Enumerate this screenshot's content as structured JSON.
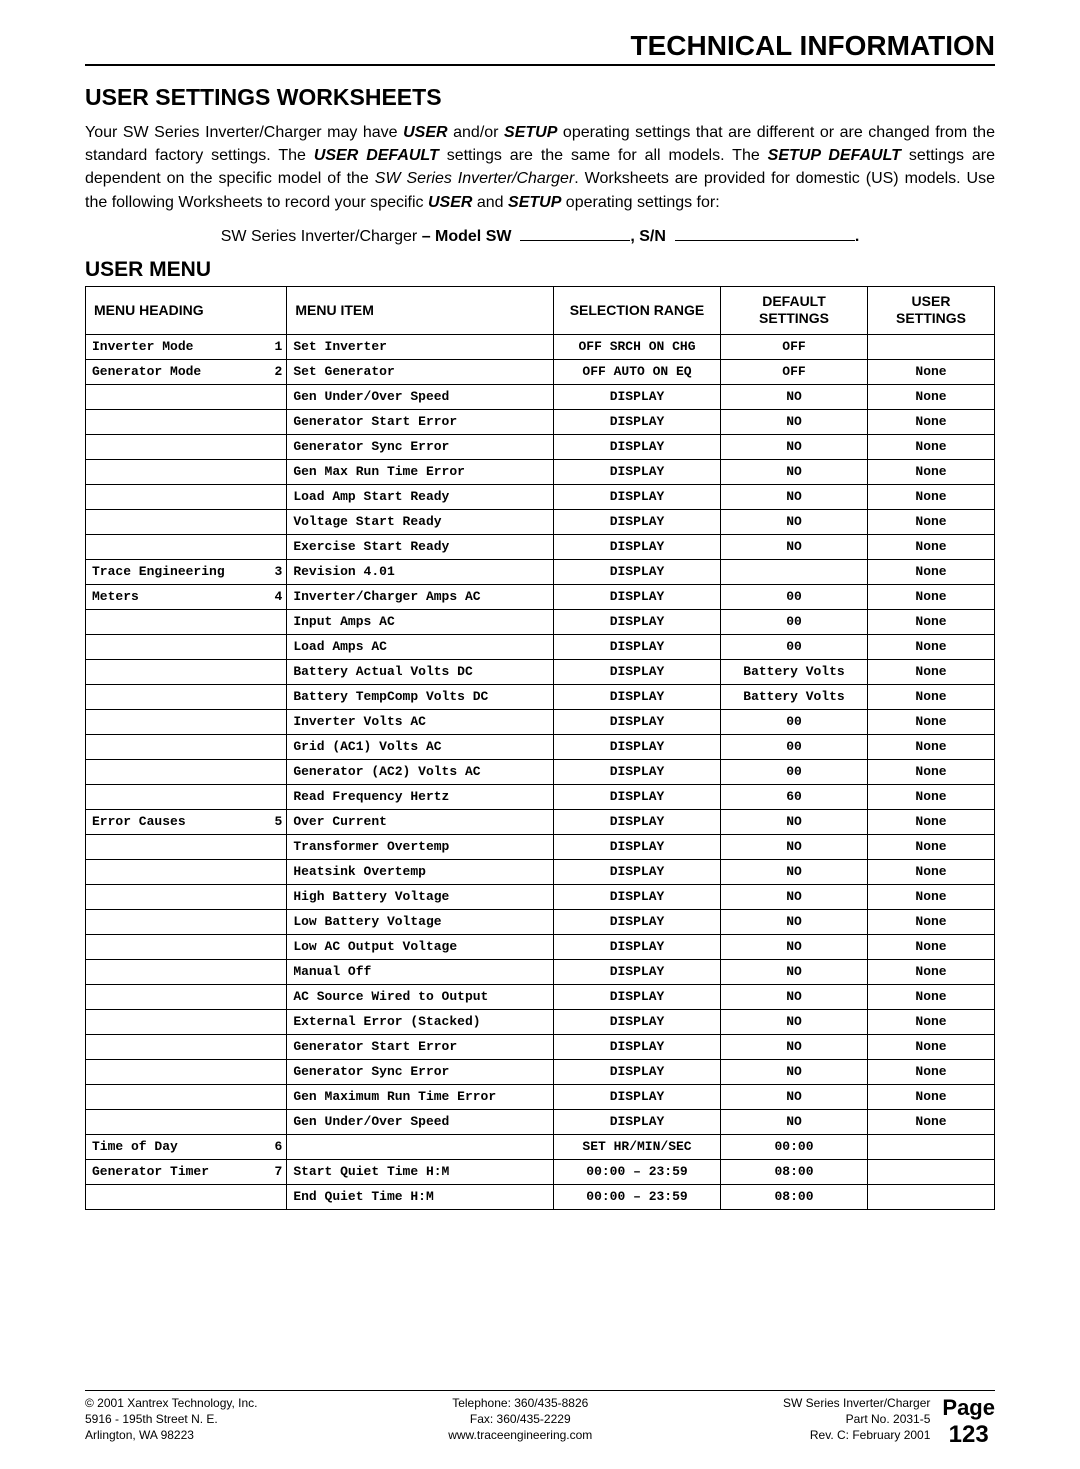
{
  "header": {
    "title": "TECHNICAL INFORMATION"
  },
  "section": {
    "title": "USER SETTINGS WORKSHEETS"
  },
  "intro": {
    "p1a": "Your SW Series Inverter/Charger may have ",
    "p1b_bi": "USER",
    "p1c": " and/or ",
    "p1d_bi": "SETUP",
    "p1e": " operating settings that are different or are changed from the standard factory settings. The ",
    "p1f_bi": "USER DEFAULT",
    "p1g": " settings are the same for all models. The ",
    "p1h_bi": "SETUP DEFAULT",
    "p1i": " settings are dependent on the specific model of the ",
    "p1j_i": "SW Series Inverter/Charger",
    "p1k": ". Worksheets are provided for domestic (US) models. Use the following Worksheets to record your specific ",
    "p1l_bi": "USER",
    "p1m": " and ",
    "p1n_bi": "SETUP",
    "p1o": " operating settings for:"
  },
  "model_line": {
    "prefix": "SW Series Inverter/Charger ",
    "model_bold": "– Model SW",
    "sn_bold": ", S/N",
    "period": "."
  },
  "subsection": {
    "title": "USER MENU"
  },
  "table": {
    "columns": {
      "heading": "MENU HEADING",
      "item": "MENU ITEM",
      "range": "SELECTION RANGE",
      "default": "DEFAULT SETTINGS",
      "user": "USER SETTINGS"
    },
    "rows": [
      {
        "heading": "Inverter Mode",
        "num": "1",
        "item": "Set Inverter",
        "range": "OFF SRCH ON CHG",
        "default": "OFF",
        "user": ""
      },
      {
        "heading": "Generator Mode",
        "num": "2",
        "item": "Set Generator",
        "range": "OFF AUTO ON EQ",
        "default": "OFF",
        "user": "None"
      },
      {
        "heading": "",
        "num": "",
        "item": "Gen Under/Over Speed",
        "range": "DISPLAY",
        "default": "NO",
        "user": "None"
      },
      {
        "heading": "",
        "num": "",
        "item": "Generator Start Error",
        "range": "DISPLAY",
        "default": "NO",
        "user": "None"
      },
      {
        "heading": "",
        "num": "",
        "item": "Generator Sync Error",
        "range": "DISPLAY",
        "default": "NO",
        "user": "None"
      },
      {
        "heading": "",
        "num": "",
        "item": "Gen Max Run Time Error",
        "range": "DISPLAY",
        "default": "NO",
        "user": "None"
      },
      {
        "heading": "",
        "num": "",
        "item": "Load Amp Start Ready",
        "range": "DISPLAY",
        "default": "NO",
        "user": "None"
      },
      {
        "heading": "",
        "num": "",
        "item": "Voltage Start Ready",
        "range": "DISPLAY",
        "default": "NO",
        "user": "None"
      },
      {
        "heading": "",
        "num": "",
        "item": "Exercise Start Ready",
        "range": "DISPLAY",
        "default": "NO",
        "user": "None"
      },
      {
        "heading": "Trace Engineering",
        "num": "3",
        "item": "Revision 4.01",
        "range": "DISPLAY",
        "default": "",
        "user": "None"
      },
      {
        "heading": "Meters",
        "num": "4",
        "item": "Inverter/Charger Amps AC",
        "range": "DISPLAY",
        "default": "00",
        "user": "None"
      },
      {
        "heading": "",
        "num": "",
        "item": "Input Amps AC",
        "range": "DISPLAY",
        "default": "00",
        "user": "None"
      },
      {
        "heading": "",
        "num": "",
        "item": "Load Amps AC",
        "range": "DISPLAY",
        "default": "00",
        "user": "None"
      },
      {
        "heading": "",
        "num": "",
        "item": "Battery Actual Volts DC",
        "range": "DISPLAY",
        "default": "Battery Volts",
        "user": "None"
      },
      {
        "heading": "",
        "num": "",
        "item": "Battery TempComp Volts DC",
        "range": "DISPLAY",
        "default": "Battery Volts",
        "user": "None"
      },
      {
        "heading": "",
        "num": "",
        "item": "Inverter Volts AC",
        "range": "DISPLAY",
        "default": "00",
        "user": "None"
      },
      {
        "heading": "",
        "num": "",
        "item": "Grid (AC1) Volts AC",
        "range": "DISPLAY",
        "default": "00",
        "user": "None"
      },
      {
        "heading": "",
        "num": "",
        "item": "Generator (AC2) Volts AC",
        "range": "DISPLAY",
        "default": "00",
        "user": "None"
      },
      {
        "heading": "",
        "num": "",
        "item": "Read Frequency Hertz",
        "range": "DISPLAY",
        "default": "60",
        "user": "None"
      },
      {
        "heading": "Error Causes",
        "num": "5",
        "item": "Over Current",
        "range": "DISPLAY",
        "default": "NO",
        "user": "None"
      },
      {
        "heading": "",
        "num": "",
        "item": "Transformer Overtemp",
        "range": "DISPLAY",
        "default": "NO",
        "user": "None"
      },
      {
        "heading": "",
        "num": "",
        "item": "Heatsink Overtemp",
        "range": "DISPLAY",
        "default": "NO",
        "user": "None"
      },
      {
        "heading": "",
        "num": "",
        "item": "High Battery Voltage",
        "range": "DISPLAY",
        "default": "NO",
        "user": "None"
      },
      {
        "heading": "",
        "num": "",
        "item": "Low Battery Voltage",
        "range": "DISPLAY",
        "default": "NO",
        "user": "None"
      },
      {
        "heading": "",
        "num": "",
        "item": "Low AC Output Voltage",
        "range": "DISPLAY",
        "default": "NO",
        "user": "None"
      },
      {
        "heading": "",
        "num": "",
        "item": "Manual Off",
        "range": "DISPLAY",
        "default": "NO",
        "user": "None"
      },
      {
        "heading": "",
        "num": "",
        "item": "AC Source Wired to Output",
        "range": "DISPLAY",
        "default": "NO",
        "user": "None"
      },
      {
        "heading": "",
        "num": "",
        "item": "External Error (Stacked)",
        "range": "DISPLAY",
        "default": "NO",
        "user": "None"
      },
      {
        "heading": "",
        "num": "",
        "item": "Generator Start Error",
        "range": "DISPLAY",
        "default": "NO",
        "user": "None"
      },
      {
        "heading": "",
        "num": "",
        "item": "Generator Sync Error",
        "range": "DISPLAY",
        "default": "NO",
        "user": "None"
      },
      {
        "heading": "",
        "num": "",
        "item": "Gen Maximum Run Time Error",
        "range": "DISPLAY",
        "default": "NO",
        "user": "None"
      },
      {
        "heading": "",
        "num": "",
        "item": "Gen Under/Over Speed",
        "range": "DISPLAY",
        "default": "NO",
        "user": "None"
      },
      {
        "heading": "Time of Day",
        "num": "6",
        "item": "",
        "range": "SET HR/MIN/SEC",
        "default": "00:00",
        "user": ""
      },
      {
        "heading": "Generator Timer",
        "num": "7",
        "item": "Start Quiet Time H:M",
        "range": "00:00 – 23:59",
        "default": "08:00",
        "user": ""
      },
      {
        "heading": "",
        "num": "",
        "item": "End Quiet Time H:M",
        "range": "00:00 – 23:59",
        "default": "08:00",
        "user": ""
      }
    ]
  },
  "footer": {
    "left1": "© 2001  Xantrex Technology, Inc.",
    "left2": "5916 - 195th Street N. E.",
    "left3": "Arlington, WA 98223",
    "center1": "Telephone: 360/435-8826",
    "center2": "Fax: 360/435-2229",
    "center3": "www.traceengineering.com",
    "right1": "SW Series Inverter/Charger",
    "right2": "Part No. 2031-5",
    "right3": "Rev. C:  February 2001",
    "page_label": "Page",
    "page_num": "123"
  }
}
